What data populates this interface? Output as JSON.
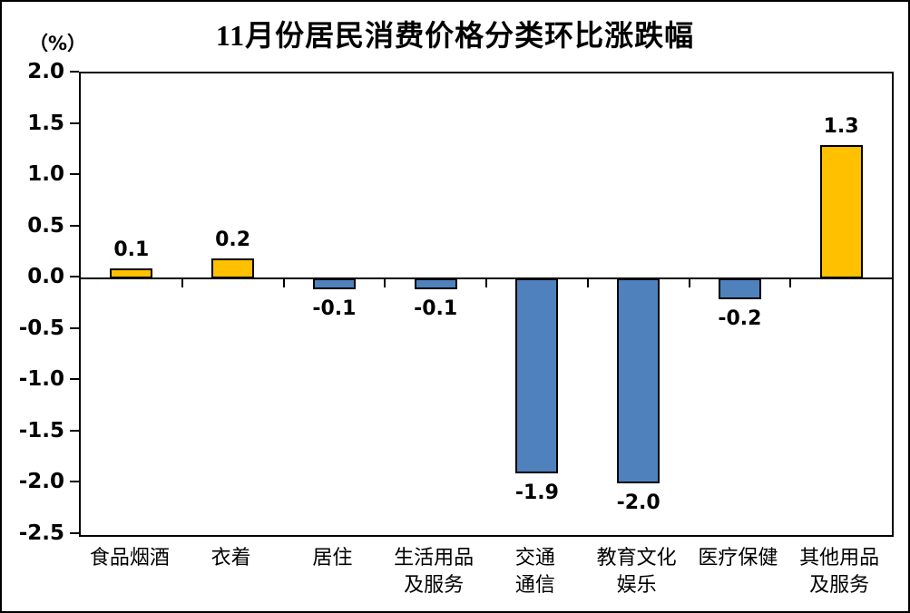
{
  "title": "11月份居民消费价格分类环比涨跌幅",
  "unit_label": "（%）",
  "chart_data": {
    "type": "bar",
    "title": "11月份居民消费价格分类环比涨跌幅",
    "xlabel": "",
    "ylabel": "（%）",
    "categories": [
      "食品烟酒",
      "衣着",
      "居住",
      "生活用品\n及服务",
      "交通\n通信",
      "教育文化\n娱乐",
      "医疗保健",
      "其他用品\n及服务"
    ],
    "values": [
      0.1,
      0.2,
      -0.1,
      -0.1,
      -1.9,
      -2.0,
      -0.2,
      1.3
    ],
    "data_labels": [
      "0.1",
      "0.2",
      "-0.1",
      "-0.1",
      "-1.9",
      "-2.0",
      "-0.2",
      "1.3"
    ],
    "ylim": [
      -2.5,
      2.0
    ],
    "yticks": [
      2.0,
      1.5,
      1.0,
      0.5,
      0.0,
      -0.5,
      -1.0,
      -1.5,
      -2.0,
      -2.5
    ],
    "ytick_labels": [
      "2.0",
      "1.5",
      "1.0",
      "0.5",
      "0.0",
      "-0.5",
      "-1.0",
      "-1.5",
      "-2.0",
      "-2.5"
    ],
    "grid": false,
    "legend": "none",
    "colors": {
      "positive_bar": "#FFC000",
      "negative_bar": "#4F81BD",
      "bar_border": "#000000",
      "axis": "#000000",
      "text": "#000000",
      "background": "#FFFFFF"
    }
  }
}
